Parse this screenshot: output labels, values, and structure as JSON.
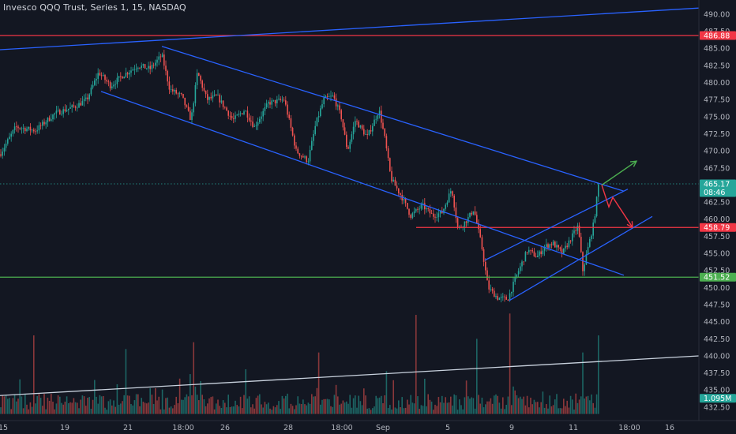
{
  "title": "Invesco QQQ Trust, Series 1, 15, NASDAQ",
  "colors": {
    "background": "#131722",
    "up": "#26a69a",
    "down": "#ef5350",
    "trendline": "#2962ff",
    "resistance": "#f23645",
    "support": "#4caf50",
    "volume_trend": "#c9d2de",
    "arrow_up": "#4caf50",
    "arrow_down": "#f23645"
  },
  "price_axis": {
    "ticks": [
      "490.00",
      "487.50",
      "485.00",
      "482.50",
      "480.00",
      "477.50",
      "475.00",
      "472.50",
      "470.00",
      "467.50",
      "465.00",
      "462.50",
      "460.00",
      "457.50",
      "455.00",
      "452.50",
      "450.00",
      "447.50",
      "445.00",
      "442.50",
      "440.00",
      "437.50",
      "435.00",
      "432.50"
    ]
  },
  "time_axis": {
    "ticks": [
      "15",
      "19",
      "21",
      "18:00",
      "26",
      "28",
      "18:00",
      "Sep",
      "5",
      "9",
      "11",
      "18:00",
      "16"
    ]
  },
  "tags": [
    {
      "label": "486.88",
      "sub": "",
      "color": "#f23645",
      "price": 486.88
    },
    {
      "label": "465.17",
      "sub": "08:46",
      "color": "#26a69a",
      "price": 465.17
    },
    {
      "label": "458.79",
      "sub": "",
      "color": "#f23645",
      "price": 458.79
    },
    {
      "label": "451.52",
      "sub": "",
      "color": "#4caf50",
      "price": 451.52
    },
    {
      "label": "1.095M",
      "sub": "",
      "color": "#26a69a",
      "price": 433.8
    }
  ],
  "chart_data": {
    "type": "candlestick",
    "symbol": "Invesco QQQ Trust, Series 1",
    "interval": "15",
    "exchange": "NASDAQ",
    "ylim": [
      431.5,
      491.5
    ],
    "xlim": [
      0,
      880
    ],
    "price_path": [
      [
        0,
        469.5
      ],
      [
        20,
        473.5
      ],
      [
        45,
        473.0
      ],
      [
        70,
        475.5
      ],
      [
        95,
        476.5
      ],
      [
        110,
        477.5
      ],
      [
        125,
        481.5
      ],
      [
        140,
        479.5
      ],
      [
        155,
        481.0
      ],
      [
        175,
        482.5
      ],
      [
        190,
        482.0
      ],
      [
        205,
        484.0
      ],
      [
        215,
        479.0
      ],
      [
        230,
        478.0
      ],
      [
        242,
        474.5
      ],
      [
        250,
        481.5
      ],
      [
        262,
        477.5
      ],
      [
        275,
        478.0
      ],
      [
        295,
        474.5
      ],
      [
        310,
        476.0
      ],
      [
        322,
        473.5
      ],
      [
        340,
        477.0
      ],
      [
        360,
        477.5
      ],
      [
        375,
        470.0
      ],
      [
        390,
        468.5
      ],
      [
        400,
        474.0
      ],
      [
        410,
        477.5
      ],
      [
        422,
        478.0
      ],
      [
        432,
        475.0
      ],
      [
        440,
        470.0
      ],
      [
        450,
        474.5
      ],
      [
        465,
        472.0
      ],
      [
        480,
        476.0
      ],
      [
        487,
        472.0
      ],
      [
        495,
        466.0
      ],
      [
        510,
        463.0
      ],
      [
        520,
        460.5
      ],
      [
        535,
        462.0
      ],
      [
        548,
        460.5
      ],
      [
        560,
        461.0
      ],
      [
        572,
        464.5
      ],
      [
        580,
        458.5
      ],
      [
        592,
        460.0
      ],
      [
        600,
        461.5
      ],
      [
        610,
        456.0
      ],
      [
        618,
        450.0
      ],
      [
        630,
        448.5
      ],
      [
        643,
        448.3
      ],
      [
        655,
        452.0
      ],
      [
        668,
        455.5
      ],
      [
        680,
        454.5
      ],
      [
        690,
        456.0
      ],
      [
        700,
        456.5
      ],
      [
        712,
        455.0
      ],
      [
        722,
        457.0
      ],
      [
        732,
        459.0
      ],
      [
        738,
        452.5
      ],
      [
        745,
        456.0
      ],
      [
        752,
        459.5
      ],
      [
        758,
        465.17
      ]
    ],
    "volume": {
      "baseline_price": 431.5,
      "spikes": [
        {
          "x": 42,
          "price": 443.0
        },
        {
          "x": 160,
          "price": 441.0
        },
        {
          "x": 245,
          "price": 442.0
        },
        {
          "x": 403,
          "price": 440.5
        },
        {
          "x": 527,
          "price": 446.0
        },
        {
          "x": 603,
          "price": 442.5
        },
        {
          "x": 645,
          "price": 446.2
        },
        {
          "x": 738,
          "price": 440.5
        },
        {
          "x": 758,
          "price": 443.0
        }
      ]
    },
    "annotations": {
      "horizontal_lines": [
        {
          "name": "resistance",
          "price": 486.88,
          "color": "#f23645",
          "x_from": 0
        },
        {
          "name": "mid-level",
          "price": 458.79,
          "color": "#f23645",
          "x_from": 527
        },
        {
          "name": "support",
          "price": 451.52,
          "color": "#4caf50",
          "x_from": 0
        },
        {
          "name": "last-price",
          "price": 465.17,
          "color": "#26a69a",
          "dotted": true,
          "x_from": 0
        }
      ],
      "trendlines": [
        {
          "name": "long-term-uptrend",
          "from": [
            0,
            484.8
          ],
          "to": [
            885,
            490.9
          ],
          "color": "#2962ff"
        },
        {
          "name": "channel-upper",
          "from": [
            205,
            485.3
          ],
          "to": [
            790,
            464.1
          ],
          "color": "#2962ff"
        },
        {
          "name": "channel-lower",
          "from": [
            128,
            478.7
          ],
          "to": [
            790,
            451.8
          ],
          "color": "#2962ff"
        },
        {
          "name": "rising-channel-upper",
          "from": [
            614,
            454.0
          ],
          "to": [
            795,
            464.4
          ],
          "color": "#2962ff"
        },
        {
          "name": "rising-channel-lower",
          "from": [
            645,
            448.1
          ],
          "to": [
            826,
            460.4
          ],
          "color": "#2962ff"
        },
        {
          "name": "volume-uptrend",
          "from": [
            0,
            434.2
          ],
          "to": [
            885,
            440.0
          ],
          "color": "#c9d2de"
        }
      ],
      "arrows": [
        {
          "name": "bullish-target",
          "from": [
            762,
            465.0
          ],
          "to": [
            806,
            468.5
          ],
          "color": "#4caf50"
        },
        {
          "name": "bearish-target",
          "points": [
            [
              762,
              465.0
            ],
            [
              771,
              461.8
            ],
            [
              776,
              463.2
            ],
            [
              801,
              458.8
            ]
          ],
          "color": "#f23645"
        }
      ]
    }
  }
}
